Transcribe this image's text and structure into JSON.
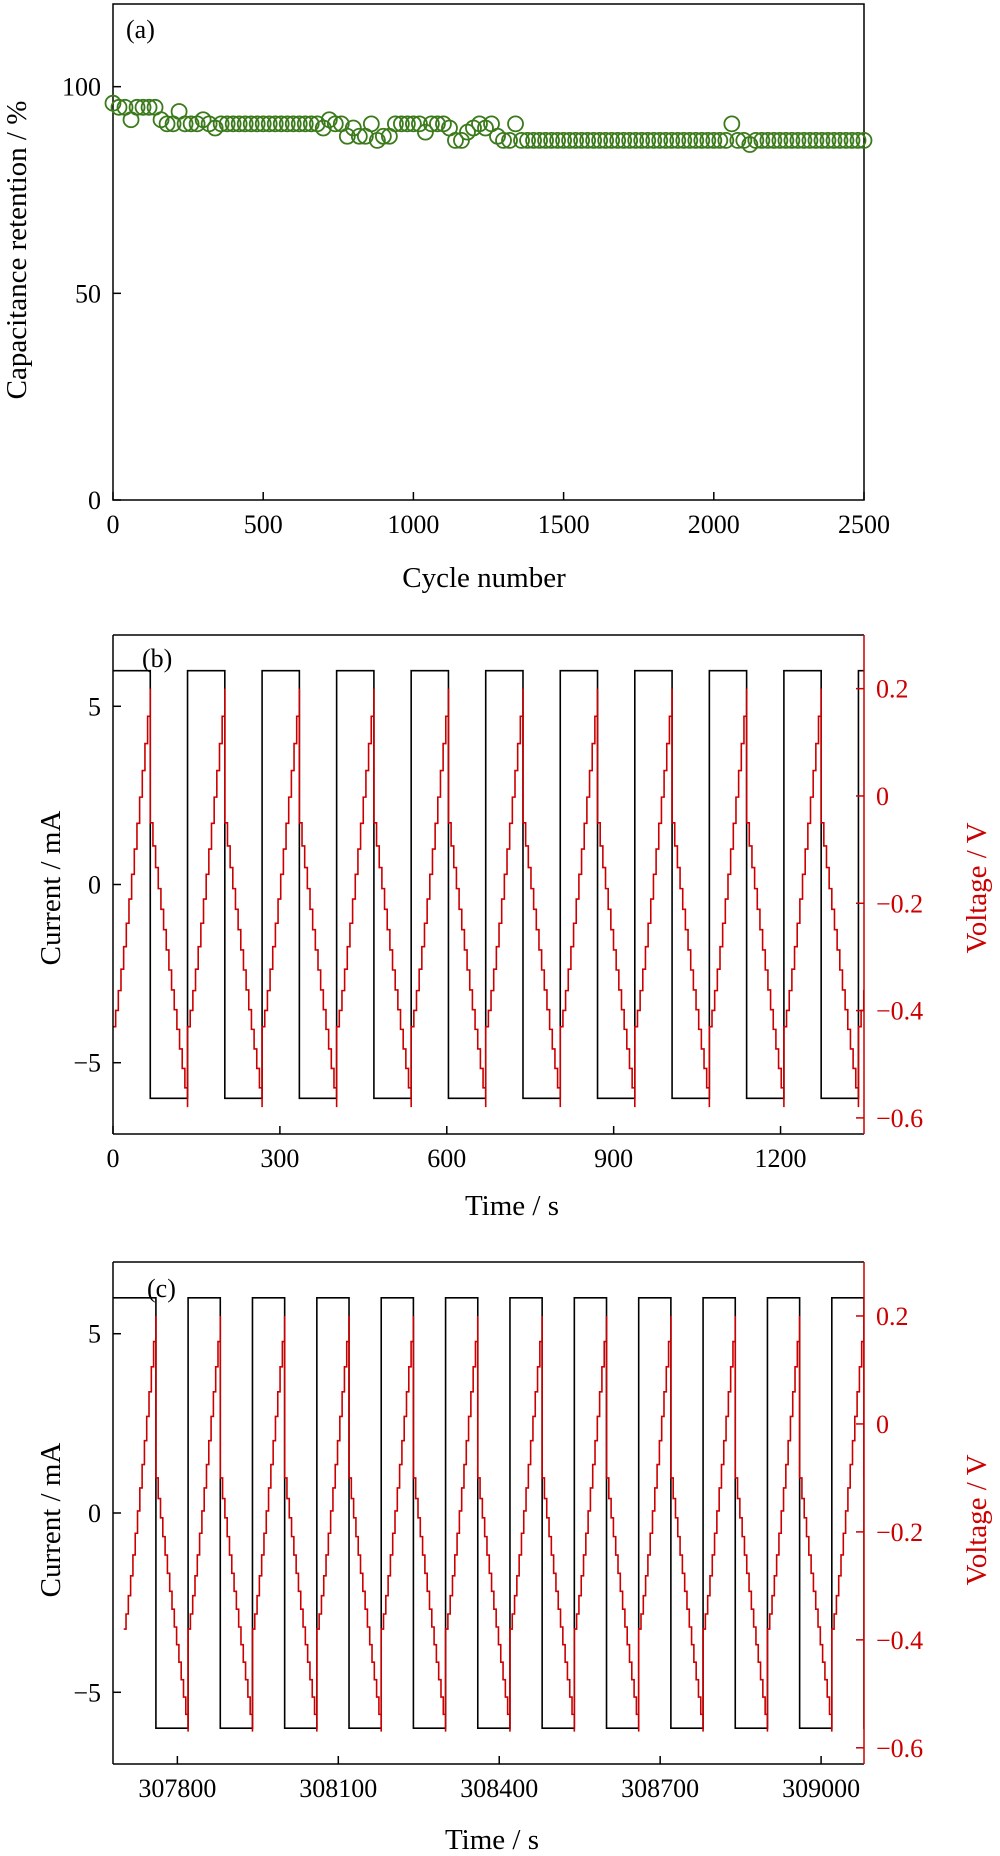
{
  "colors": {
    "axis": "#000000",
    "current": "#000000",
    "voltage": "#cc0000",
    "retention": "#3a7a1a"
  },
  "chart_data": [
    {
      "id": "a",
      "type": "scatter",
      "panel_label": "(a)",
      "xlabel": "Cycle number",
      "ylabel": "Capacitance retention / %",
      "xlim": [
        0,
        2500
      ],
      "ylim": [
        0,
        120
      ],
      "xticks": [
        0,
        500,
        1000,
        1500,
        2000,
        2500
      ],
      "yticks": [
        0,
        50,
        100
      ],
      "marker": "open-circle",
      "series": [
        {
          "x": [
            0,
            20,
            40,
            60,
            80,
            100,
            120,
            140,
            160,
            180,
            200,
            220,
            240,
            260,
            280,
            300,
            320,
            340,
            360,
            380,
            400,
            420,
            440,
            460,
            480,
            500,
            520,
            540,
            560,
            580,
            600,
            620,
            640,
            660,
            680,
            700,
            720,
            740,
            760,
            780,
            800,
            820,
            840,
            860,
            880,
            900,
            920,
            940,
            960,
            980,
            1000,
            1020,
            1040,
            1060,
            1080,
            1100,
            1120,
            1140,
            1160,
            1180,
            1200,
            1220,
            1240,
            1260,
            1280,
            1300,
            1320,
            1340,
            1360,
            1380,
            1400,
            1420,
            1440,
            1460,
            1480,
            1500,
            1520,
            1540,
            1560,
            1580,
            1600,
            1620,
            1640,
            1660,
            1680,
            1700,
            1720,
            1740,
            1760,
            1780,
            1800,
            1820,
            1840,
            1860,
            1880,
            1900,
            1920,
            1940,
            1960,
            1980,
            2000,
            2020,
            2040,
            2060,
            2080,
            2100,
            2120,
            2140,
            2160,
            2180,
            2200,
            2220,
            2240,
            2260,
            2280,
            2300,
            2320,
            2340,
            2360,
            2380,
            2400,
            2420,
            2440,
            2460,
            2480,
            2500
          ],
          "y": [
            96,
            95,
            95,
            92,
            95,
            95,
            95,
            95,
            92,
            91,
            91,
            94,
            91,
            91,
            91,
            92,
            91,
            90,
            91,
            91,
            91,
            91,
            91,
            91,
            91,
            91,
            91,
            91,
            91,
            91,
            91,
            91,
            91,
            91,
            91,
            90,
            92,
            91,
            91,
            88,
            90,
            88,
            88,
            91,
            87,
            88,
            88,
            91,
            91,
            91,
            91,
            91,
            89,
            91,
            91,
            91,
            90,
            87,
            87,
            89,
            90,
            91,
            90,
            91,
            88,
            87,
            87,
            91,
            87,
            87,
            87,
            87,
            87,
            87,
            87,
            87,
            87,
            87,
            87,
            87,
            87,
            87,
            87,
            87,
            87,
            87,
            87,
            87,
            87,
            87,
            87,
            87,
            87,
            87,
            87,
            87,
            87,
            87,
            87,
            87,
            87,
            87,
            87,
            91,
            87,
            87,
            86,
            87,
            87,
            87,
            87,
            87,
            87,
            87,
            87,
            87,
            87,
            87,
            87,
            87,
            87,
            87,
            87,
            87,
            87,
            87
          ]
        }
      ]
    },
    {
      "id": "b",
      "type": "line",
      "panel_label": "(b)",
      "xlabel": "Time / s",
      "ylabel_left": "Current / mA",
      "ylabel_right": "Voltage / V",
      "xlim": [
        0,
        1350
      ],
      "ylim_left": [
        -7,
        7
      ],
      "ylim_right": [
        -0.63,
        0.3
      ],
      "xticks": [
        0,
        300,
        600,
        900,
        1200
      ],
      "yticks_left": [
        -5,
        0,
        5
      ],
      "yticks_right": [
        -0.6,
        -0.4,
        -0.2,
        0,
        0.2
      ],
      "ytick_labels_right": [
        "−0.6",
        "−0.4",
        "−0.2",
        "0",
        "0.2"
      ],
      "ytick_labels_left": [
        "−5",
        "0",
        "5"
      ],
      "cycle_start": 0,
      "charge_duration": 67,
      "discharge_duration": 67,
      "n_cycles": 10,
      "current_high": 6,
      "current_low": -6,
      "voltage_min": -0.43,
      "voltage_peak": 0.2,
      "voltage_after_drop": -0.05,
      "voltage_end": -0.58
    },
    {
      "id": "c",
      "type": "line",
      "panel_label": "(c)",
      "xlabel": "Time / s",
      "ylabel_left": "Current / mA",
      "ylabel_right": "Voltage / V",
      "xlim": [
        307680,
        309080
      ],
      "ylim_left": [
        -7,
        7
      ],
      "ylim_right": [
        -0.63,
        0.3
      ],
      "xticks": [
        307800,
        308100,
        308400,
        308700,
        309000
      ],
      "yticks_left": [
        -5,
        0,
        5
      ],
      "yticks_right": [
        -0.6,
        -0.4,
        -0.2,
        0,
        0.2
      ],
      "ytick_labels_right": [
        "−0.6",
        "−0.4",
        "−0.2",
        "0",
        "0.2"
      ],
      "ytick_labels_left": [
        "−5",
        "0",
        "5"
      ],
      "cycle_start": 307700,
      "charge_duration": 60,
      "discharge_duration": 60,
      "n_cycles": 11,
      "current_high": 6,
      "current_low": -6,
      "voltage_min": -0.38,
      "voltage_peak": 0.2,
      "voltage_after_drop": -0.1,
      "voltage_end": -0.57
    }
  ]
}
